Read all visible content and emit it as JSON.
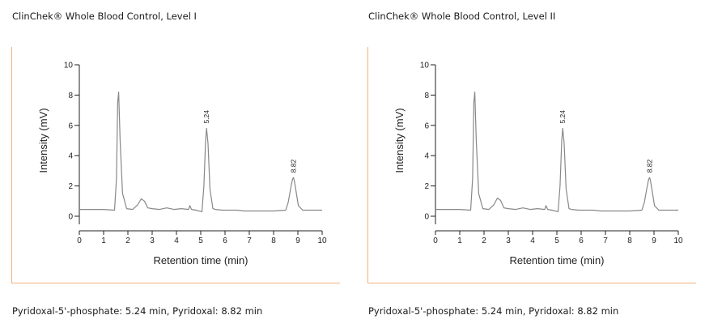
{
  "chart_data": [
    {
      "type": "line",
      "title": "ClinChek® Whole Blood Control, Level I",
      "caption": "Pyridoxal-5'-phosphate: 5.24 min, Pyridoxal: 8.82 min",
      "xlabel": "Retention time (min)",
      "ylabel": "Intensity (mV)",
      "xlim": [
        0,
        10
      ],
      "ylim": [
        0,
        10
      ],
      "xticks": [
        0,
        1,
        2,
        3,
        4,
        5,
        6,
        7,
        8,
        9,
        10
      ],
      "yticks": [
        0,
        2,
        4,
        6,
        8,
        10
      ],
      "grid": false,
      "series": [
        {
          "x": [
            0.0,
            1.0,
            1.45,
            1.53,
            1.58,
            1.62,
            1.68,
            1.78,
            1.95,
            2.2,
            2.4,
            2.55,
            2.68,
            2.82,
            3.0,
            3.3,
            3.6,
            3.9,
            4.2,
            4.5,
            4.55,
            4.62,
            4.8,
            5.05,
            5.13,
            5.2,
            5.24,
            5.3,
            5.38,
            5.5,
            5.6,
            5.9,
            6.2,
            6.5,
            6.8,
            7.2,
            7.6,
            8.0,
            8.5,
            8.6,
            8.7,
            8.78,
            8.82,
            8.86,
            8.94,
            9.02,
            9.2,
            9.6,
            10.0
          ],
          "y": [
            0.45,
            0.45,
            0.4,
            2.5,
            7.5,
            8.2,
            5.0,
            1.5,
            0.5,
            0.45,
            0.75,
            1.15,
            1.0,
            0.55,
            0.5,
            0.45,
            0.55,
            0.45,
            0.5,
            0.45,
            0.7,
            0.45,
            0.4,
            0.3,
            2.0,
            5.0,
            5.8,
            4.8,
            1.8,
            0.5,
            0.45,
            0.4,
            0.4,
            0.4,
            0.35,
            0.35,
            0.35,
            0.35,
            0.4,
            0.9,
            1.8,
            2.45,
            2.55,
            2.3,
            1.5,
            0.7,
            0.4,
            0.4,
            0.4
          ]
        }
      ],
      "annotations": [
        {
          "x": 5.24,
          "y": 5.8,
          "text": "5.24"
        },
        {
          "x": 8.82,
          "y": 2.55,
          "text": "8.82"
        }
      ]
    },
    {
      "type": "line",
      "title": "ClinChek® Whole Blood Control, Level II",
      "caption": "Pyridoxal-5'-phosphate: 5.24 min, Pyridoxal: 8.82 min",
      "xlabel": "Retention time (min)",
      "ylabel": "Intensity (mV)",
      "xlim": [
        0,
        10
      ],
      "ylim": [
        0,
        10
      ],
      "xticks": [
        0,
        1,
        2,
        3,
        4,
        5,
        6,
        7,
        8,
        9,
        10
      ],
      "yticks": [
        0,
        2,
        4,
        6,
        8,
        10
      ],
      "grid": false,
      "series": [
        {
          "x": [
            0.0,
            1.0,
            1.45,
            1.53,
            1.58,
            1.62,
            1.68,
            1.78,
            1.95,
            2.2,
            2.4,
            2.55,
            2.68,
            2.82,
            3.0,
            3.3,
            3.6,
            3.9,
            4.2,
            4.5,
            4.55,
            4.62,
            4.8,
            5.05,
            5.13,
            5.2,
            5.24,
            5.3,
            5.38,
            5.5,
            5.6,
            5.9,
            6.2,
            6.5,
            6.8,
            7.2,
            7.6,
            8.0,
            8.5,
            8.6,
            8.7,
            8.78,
            8.82,
            8.86,
            8.94,
            9.02,
            9.2,
            9.6,
            10.0
          ],
          "y": [
            0.45,
            0.45,
            0.4,
            2.5,
            7.5,
            8.2,
            5.0,
            1.5,
            0.5,
            0.45,
            0.75,
            1.2,
            1.05,
            0.55,
            0.5,
            0.45,
            0.55,
            0.45,
            0.5,
            0.45,
            0.7,
            0.45,
            0.4,
            0.3,
            2.0,
            5.0,
            5.8,
            4.8,
            1.8,
            0.5,
            0.45,
            0.4,
            0.4,
            0.4,
            0.35,
            0.35,
            0.35,
            0.35,
            0.4,
            0.9,
            1.8,
            2.45,
            2.55,
            2.3,
            1.5,
            0.7,
            0.4,
            0.4,
            0.4
          ]
        }
      ],
      "annotations": [
        {
          "x": 5.24,
          "y": 5.8,
          "text": "5.24"
        },
        {
          "x": 8.82,
          "y": 2.55,
          "text": "8.82"
        }
      ]
    }
  ],
  "colors": {
    "frame": "#f0b37f",
    "trace": "#888888",
    "axis": "#222222"
  }
}
